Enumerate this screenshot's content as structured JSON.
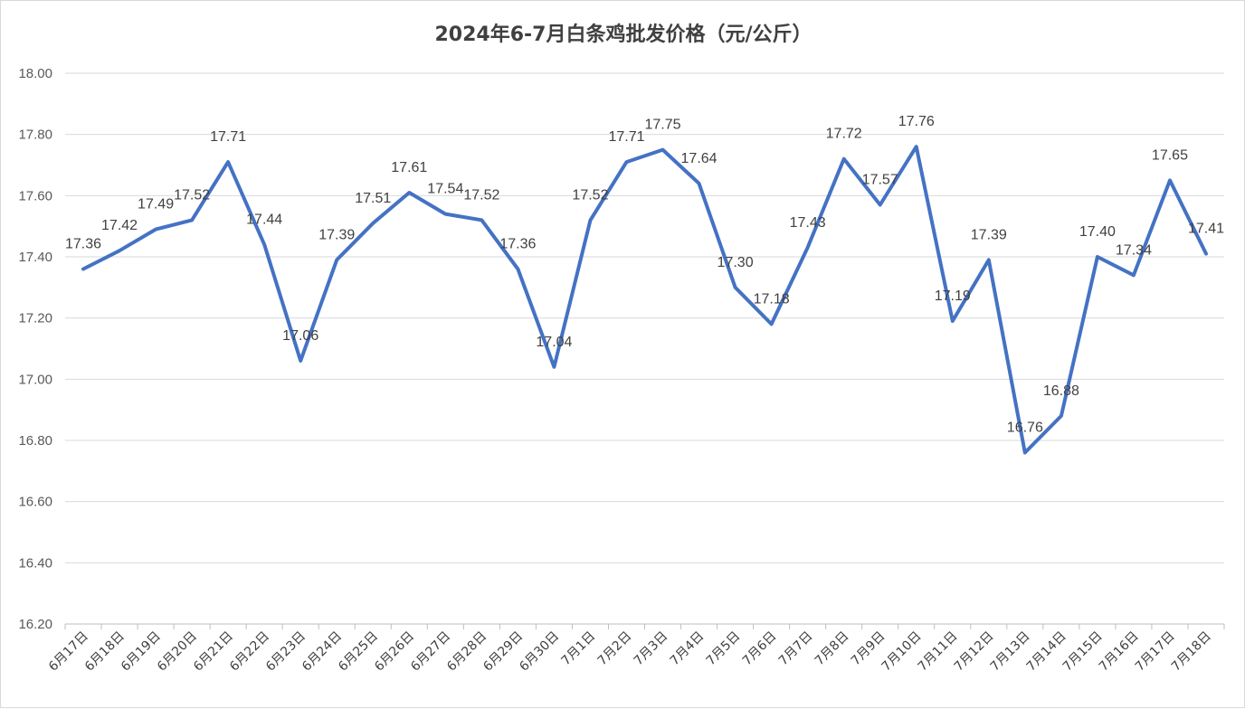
{
  "chart_data": {
    "type": "line",
    "title": "2024年6-7月白条鸡批发价格（元/公斤）",
    "categories": [
      "6月17日",
      "6月18日",
      "6月19日",
      "6月20日",
      "6月21日",
      "6月22日",
      "6月23日",
      "6月24日",
      "6月25日",
      "6月26日",
      "6月27日",
      "6月28日",
      "6月29日",
      "6月30日",
      "7月1日",
      "7月2日",
      "7月3日",
      "7月4日",
      "7月5日",
      "7月6日",
      "7月7日",
      "7月8日",
      "7月9日",
      "7月10日",
      "7月11日",
      "7月12日",
      "7月13日",
      "7月14日",
      "7月15日",
      "7月16日",
      "7月17日",
      "7月18日"
    ],
    "series": [
      {
        "values": [
          17.36,
          17.42,
          17.49,
          17.52,
          17.71,
          17.44,
          17.06,
          17.39,
          17.51,
          17.61,
          17.54,
          17.52,
          17.36,
          17.04,
          17.52,
          17.71,
          17.75,
          17.64,
          17.3,
          17.18,
          17.43,
          17.72,
          17.57,
          17.76,
          17.19,
          17.39,
          16.76,
          16.88,
          17.4,
          17.34,
          17.65,
          17.41
        ],
        "labels": [
          "17.36",
          "17.42",
          "17.49",
          "17.52",
          "17.71",
          "17.44",
          "17.06",
          "17.39",
          "17.51",
          "17.61",
          "17.54",
          "17.52",
          "17.36",
          "17.04",
          "17.52",
          "17.71",
          "17.75",
          "17.64",
          "17.30",
          "17.18",
          "17.43",
          "17.72",
          "17.57",
          "17.76",
          "17.19",
          "17.39",
          "16.76",
          "16.88",
          "17.40",
          "17.34",
          "17.65",
          "17.41"
        ],
        "color": "#4472C4"
      }
    ],
    "ylim": [
      16.2,
      18.0
    ],
    "yticks": [
      "16.20",
      "16.40",
      "16.60",
      "16.80",
      "17.00",
      "17.20",
      "17.40",
      "17.60",
      "17.80",
      "18.00"
    ],
    "xlabel": "",
    "ylabel": "",
    "grid": true,
    "legend": "none"
  }
}
